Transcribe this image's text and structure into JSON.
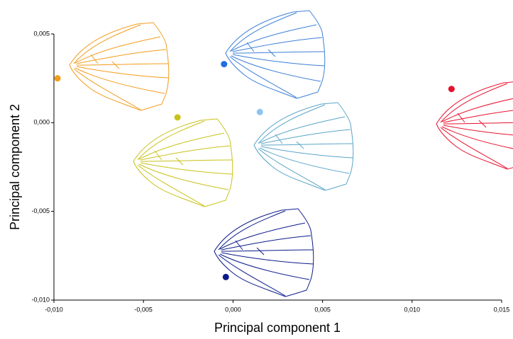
{
  "chart_data": {
    "type": "scatter",
    "x_label": "Principal component 1",
    "y_label": "Principal component 2",
    "x": [
      -0.0098,
      -0.0005,
      -0.0031,
      0.0015,
      0.0122,
      -0.0004
    ],
    "values": [
      0.0025,
      0.0033,
      0.0003,
      0.0006,
      0.0019,
      -0.0087
    ],
    "colors": [
      "#f39c1c",
      "#1f6fe0",
      "#c9c21a",
      "#8fc4ee",
      "#e8112d",
      "#0b1a8a"
    ],
    "wing_colors": [
      "#f39c1c",
      "#3c7fd8",
      "#c9c21a",
      "#5aa5c8",
      "#e8112d",
      "#0b1a8a"
    ],
    "xlim": [
      -0.01,
      0.015
    ],
    "ylim": [
      -0.01,
      0.005
    ],
    "xticks": [
      {
        "value": -0.01,
        "label": "-0,010"
      },
      {
        "value": -0.005,
        "label": "-0,005"
      },
      {
        "value": 0,
        "label": "0,000"
      },
      {
        "value": 0.005,
        "label": "0,005"
      },
      {
        "value": 0.01,
        "label": "0,010"
      },
      {
        "value": 0.015,
        "label": "0,015"
      }
    ],
    "yticks": [
      {
        "value": -0.01,
        "label": "-0,010"
      },
      {
        "value": -0.005,
        "label": "-0,005"
      },
      {
        "value": 0,
        "label": "0,000"
      },
      {
        "value": 0.005,
        "label": "0,005"
      }
    ]
  }
}
